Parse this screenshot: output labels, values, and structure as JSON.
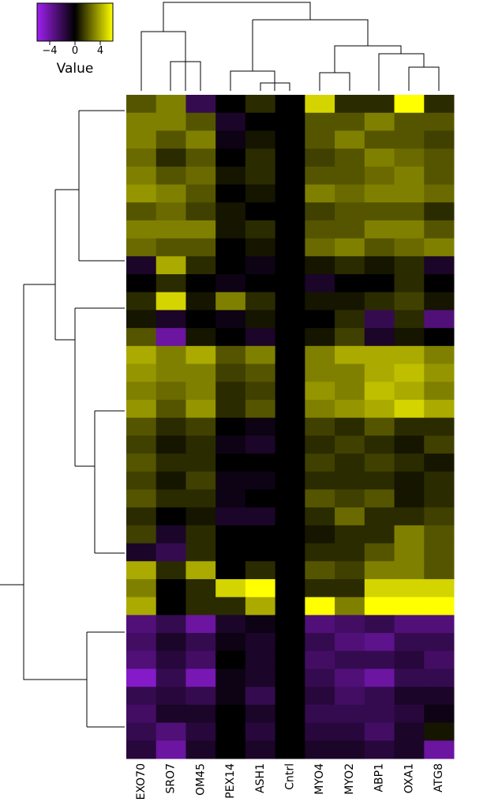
{
  "chart_data": {
    "type": "heatmap",
    "columns": [
      "EXO70",
      "SRO7",
      "OM45",
      "PEX14",
      "ASH1",
      "Cntrl",
      "MYO4",
      "MYO2",
      "ABP1",
      "OXA1",
      "ATG8"
    ],
    "colors": {
      "low": "#a020f0",
      "mid": "#000000",
      "high": "#ffff00"
    },
    "key": {
      "label": "Value",
      "lim": [
        -6,
        6
      ],
      "ticks": [
        {
          "value": -4,
          "label": "−4"
        },
        0,
        4
      ]
    },
    "values": [
      [
        2,
        3,
        -2,
        0,
        1,
        0,
        5,
        1,
        1,
        6,
        1
      ],
      [
        3,
        3,
        2,
        -1,
        0,
        0,
        2,
        2,
        3,
        2,
        2
      ],
      [
        3,
        2,
        3,
        -0.5,
        0.5,
        0,
        2,
        3,
        2,
        2,
        1.5
      ],
      [
        2.5,
        1,
        2,
        0,
        1,
        0,
        1.5,
        2,
        3,
        2.5,
        2
      ],
      [
        3,
        2,
        2.5,
        0.5,
        1,
        0,
        2,
        2,
        2.5,
        3,
        2
      ],
      [
        3.5,
        3,
        2,
        0,
        0.5,
        0,
        3,
        2.5,
        3,
        3,
        2.5
      ],
      [
        2,
        2.5,
        1.5,
        0.5,
        0,
        0,
        1.5,
        2,
        2,
        2,
        1
      ],
      [
        3,
        3,
        3,
        0.5,
        1,
        0,
        2,
        2,
        3,
        3,
        2
      ],
      [
        2.5,
        2,
        2,
        0,
        0.5,
        0,
        2.5,
        3,
        2,
        2.5,
        3
      ],
      [
        -1,
        4,
        1,
        0,
        -0.5,
        0,
        0.5,
        1,
        0.5,
        1,
        -1
      ],
      [
        0,
        1,
        0,
        -0.5,
        0,
        0,
        -1,
        0,
        0,
        1,
        0
      ],
      [
        1,
        5,
        0.5,
        3,
        1,
        0,
        0.5,
        0.5,
        1,
        1.5,
        0.5
      ],
      [
        0.5,
        -1,
        0,
        -0.5,
        0.5,
        0,
        0,
        1,
        -2,
        1,
        -3
      ],
      [
        2,
        -4,
        0.5,
        0,
        -1,
        0,
        0.5,
        1.5,
        -1,
        0.5,
        0
      ],
      [
        4,
        3,
        4,
        2,
        3,
        0,
        3,
        4,
        4,
        4,
        3
      ],
      [
        3.5,
        3,
        3,
        1.5,
        2,
        0,
        3,
        3,
        4,
        4.5,
        3.5
      ],
      [
        3,
        2.5,
        3,
        1,
        1.5,
        0,
        3.5,
        3,
        4.5,
        4,
        3
      ],
      [
        3.5,
        2,
        3.5,
        1,
        2,
        0,
        3,
        3.5,
        4,
        5,
        4
      ],
      [
        2,
        1,
        1.5,
        0,
        -0.5,
        0,
        1.5,
        1,
        2,
        1,
        1
      ],
      [
        1.5,
        0.5,
        1,
        -0.5,
        -1,
        0,
        1,
        1.5,
        1,
        0.5,
        1.5
      ],
      [
        2,
        1,
        1,
        0,
        0,
        0,
        1.5,
        1,
        1.5,
        1,
        0.5
      ],
      [
        1.5,
        0.5,
        1.5,
        -0.5,
        -0.5,
        0,
        1,
        1,
        1,
        0.5,
        1
      ],
      [
        2,
        1,
        1,
        -0.5,
        0,
        0,
        2,
        1.5,
        2,
        0.5,
        1
      ],
      [
        1,
        0,
        0.5,
        -1,
        -1,
        0,
        1,
        2.5,
        1,
        1,
        1.5
      ],
      [
        1.5,
        -1,
        1,
        0,
        0,
        0,
        0.5,
        1,
        1,
        3,
        2
      ],
      [
        -1,
        -2,
        1,
        0,
        0,
        0,
        1,
        1,
        2,
        3,
        2
      ],
      [
        4,
        1,
        4,
        0,
        1,
        0,
        2,
        1.5,
        3,
        3,
        2
      ],
      [
        3,
        0,
        1,
        5,
        6,
        0,
        1,
        1,
        5,
        5,
        5
      ],
      [
        4,
        0,
        1,
        1,
        4,
        0,
        6,
        3,
        6,
        6,
        6
      ],
      [
        -3,
        -2,
        -4,
        -1,
        -0.5,
        0,
        -3,
        -2.5,
        -2,
        -3,
        -3
      ],
      [
        -2.5,
        -1,
        -2,
        -0.5,
        -1,
        0,
        -2,
        -3,
        -3.5,
        -2,
        -2
      ],
      [
        -3,
        -1.5,
        -2.5,
        0,
        -1,
        0,
        -2.5,
        -2,
        -2,
        -1.5,
        -2.5
      ],
      [
        -5,
        -2,
        -4.5,
        -0.5,
        -1,
        0,
        -2,
        -3,
        -4,
        -2,
        -2
      ],
      [
        -2,
        -1.5,
        -2,
        -0.5,
        -2,
        0,
        -1.5,
        -2.5,
        -2,
        -1,
        -1
      ],
      [
        -2.5,
        -1,
        -1,
        0,
        -1,
        0,
        -2,
        -2,
        -2,
        -1.5,
        -0.5
      ],
      [
        -2,
        -3,
        -1.5,
        0,
        -1.5,
        0,
        -1.5,
        -1.5,
        -2.5,
        -1,
        0.5
      ],
      [
        -1.5,
        -4,
        -1,
        0,
        -1,
        0,
        -1,
        -1,
        -1.5,
        -1,
        -4
      ]
    ]
  }
}
